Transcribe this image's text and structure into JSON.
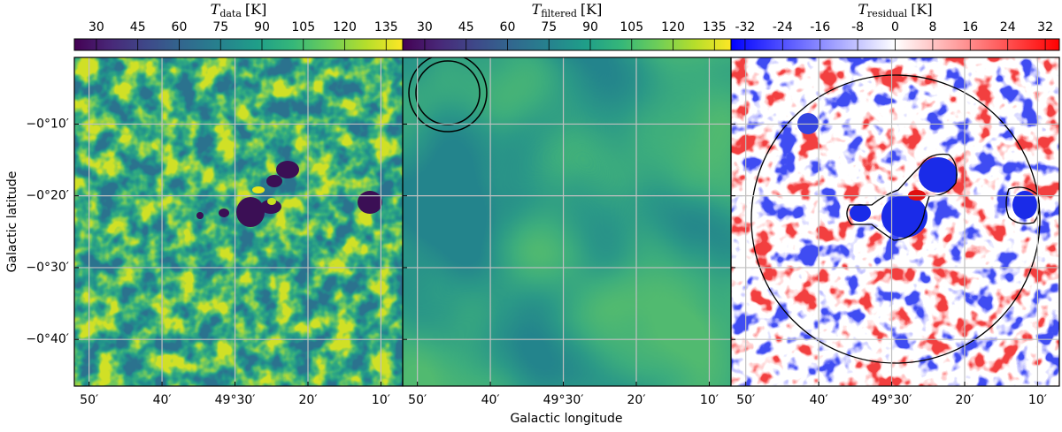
{
  "chart_data": {
    "type": "heatmap",
    "x_label": "Galactic longitude",
    "y_label": "Galactic latitude",
    "xlim": [
      49.867,
      49.117
    ],
    "ylim": [
      -0.775,
      -0.012
    ],
    "xticks": [
      {
        "value": 49.8333,
        "label": "50′"
      },
      {
        "value": 49.6667,
        "label": "40′"
      },
      {
        "value": 49.5,
        "label": "49°30′"
      },
      {
        "value": 49.3333,
        "label": "20′"
      },
      {
        "value": 49.1667,
        "label": "10′"
      }
    ],
    "yticks": [
      {
        "value": -0.1667,
        "label": "−0°10′"
      },
      {
        "value": -0.3333,
        "label": "−0°20′"
      },
      {
        "value": -0.5,
        "label": "−0°30′"
      },
      {
        "value": -0.6667,
        "label": "−0°40′"
      }
    ],
    "grid": true,
    "panels": [
      {
        "colorbar_label": {
          "symbol": "T",
          "subscript": "data",
          "unit": "[K]"
        },
        "colormap": "viridis",
        "clim": [
          22,
          141
        ],
        "cticks": [
          30,
          45,
          60,
          75,
          90,
          105,
          120,
          135
        ]
      },
      {
        "colorbar_label": {
          "symbol": "T",
          "subscript": "filtered",
          "unit": "[K]"
        },
        "colormap": "viridis",
        "clim": [
          22,
          141
        ],
        "cticks": [
          30,
          45,
          60,
          75,
          90,
          105,
          120,
          135
        ]
      },
      {
        "colorbar_label": {
          "symbol": "T",
          "subscript": "residual",
          "unit": "[K]"
        },
        "colormap": "bwr",
        "clim": [
          -35,
          35
        ],
        "cticks": [
          -32,
          -24,
          -16,
          -8,
          0,
          8,
          16,
          24,
          32
        ]
      }
    ]
  }
}
